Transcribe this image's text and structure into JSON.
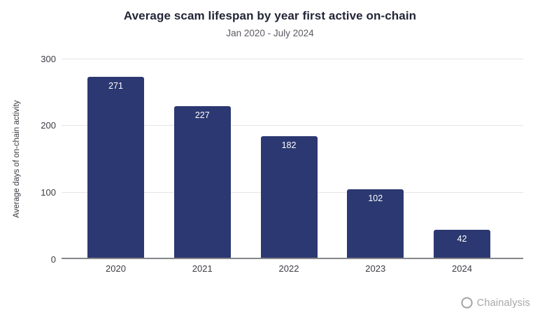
{
  "title": "Average scam lifespan by year first active on-chain",
  "subtitle": "Jan 2020 - July 2024",
  "footer": {
    "brand": "Chainalysis",
    "icon": "chainalysis-knot-icon"
  },
  "chart_data": {
    "type": "bar",
    "categories": [
      "2020",
      "2021",
      "2022",
      "2023",
      "2024"
    ],
    "values": [
      271,
      227,
      182,
      102,
      42
    ],
    "title": "Average scam lifespan by year first active on-chain",
    "subtitle": "Jan 2020 - July 2024",
    "xlabel": "",
    "ylabel": "Average days of on-chain activity",
    "yticks": [
      0,
      100,
      200,
      300
    ],
    "ylim": [
      0,
      300
    ],
    "grid": true,
    "legend": false,
    "value_labels": "inside-top"
  },
  "colors": {
    "bar": "#2b3872",
    "value_label": "#ffffff",
    "title": "#232536",
    "subtitle": "#595a62",
    "axis_text": "#3a3b42",
    "gridline": "#e5e5e7",
    "zero_line": "#85868a",
    "brand": "#a7a7ab",
    "background": "#ffffff"
  }
}
